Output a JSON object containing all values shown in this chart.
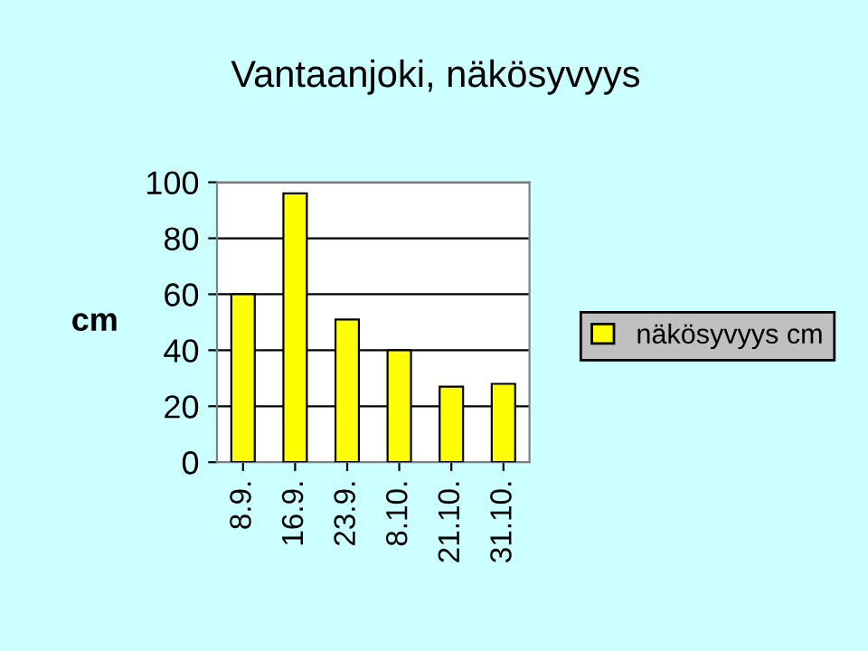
{
  "chart_data": {
    "type": "bar",
    "title": "Vantaanjoki, näkösyvyys",
    "ylabel": "cm",
    "categories": [
      "8.9.",
      "16.9.",
      "23.9.",
      "8.10.",
      "21.10.",
      "31.10."
    ],
    "series": [
      {
        "name": "näkösyvyys cm",
        "color": "#ffff00",
        "values": [
          60,
          96,
          51,
          40,
          27,
          28
        ]
      }
    ],
    "ylim": [
      0,
      100
    ],
    "yticks": [
      0,
      20,
      40,
      60,
      80,
      100
    ],
    "grid": "y",
    "legend": "right"
  }
}
